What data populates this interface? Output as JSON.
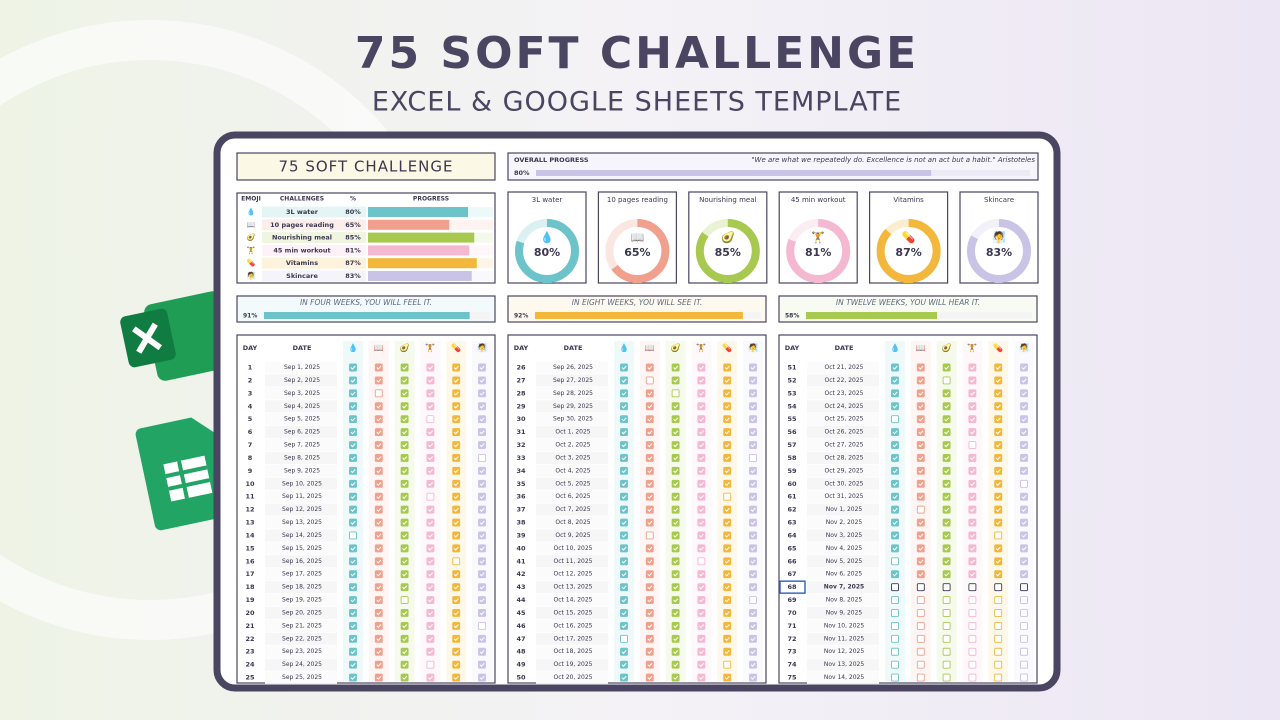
{
  "header": {
    "title": "75 SOFT CHALLENGE",
    "subtitle": "EXCEL & GOOGLE SHEETS TEMPLATE"
  },
  "sheet": {
    "title": "75 SOFT CHALLENGE",
    "overall": {
      "label": "OVERALL PROGRESS",
      "value": 80,
      "value_label": "80%",
      "quote": "\"We are what we repeatedly do. Excellence is not an act but a habit.\" Aristoteles"
    },
    "table_headers": [
      "EMOJI",
      "CHALLENGES",
      "%",
      "PROGRESS"
    ],
    "challenges": [
      {
        "emoji": "💧",
        "name": "3L water",
        "value": 80,
        "value_label": "80%",
        "color": "#6cc3c9"
      },
      {
        "emoji": "📖",
        "name": "10 pages reading",
        "value": 65,
        "value_label": "65%",
        "color": "#f0a08c"
      },
      {
        "emoji": "🥑",
        "name": "Nourishing meal",
        "value": 85,
        "value_label": "85%",
        "color": "#a8c94f"
      },
      {
        "emoji": "🏋",
        "name": "45 min workout",
        "value": 81,
        "value_label": "81%",
        "color": "#f4b8d0"
      },
      {
        "emoji": "💊",
        "name": "Vitamins",
        "value": 87,
        "value_label": "87%",
        "color": "#f2b73b"
      },
      {
        "emoji": "🧖",
        "name": "Skincare",
        "value": 83,
        "value_label": "83%",
        "color": "#c9c3e6"
      }
    ],
    "weeks": [
      {
        "text": "IN FOUR WEEKS, YOU WILL FEEL IT.",
        "value": 91,
        "value_label": "91%",
        "color": "#6cc3c9"
      },
      {
        "text": "IN EIGHT WEEKS, YOU WILL SEE IT.",
        "value": 92,
        "value_label": "92%",
        "color": "#f2b73b"
      },
      {
        "text": "IN TWELVE WEEKS, YOU WILL HEAR IT.",
        "value": 58,
        "value_label": "58%",
        "color": "#a8c94f"
      }
    ],
    "log": {
      "columns": [
        "DAY",
        "DATE"
      ],
      "days": [
        [
          1,
          "Sep 1, 2025",
          [
            1,
            1,
            1,
            1,
            1,
            1
          ]
        ],
        [
          2,
          "Sep 2, 2025",
          [
            1,
            1,
            1,
            1,
            1,
            1
          ]
        ],
        [
          3,
          "Sep 3, 2025",
          [
            1,
            0,
            1,
            1,
            1,
            1
          ]
        ],
        [
          4,
          "Sep 4, 2025",
          [
            1,
            1,
            1,
            1,
            1,
            1
          ]
        ],
        [
          5,
          "Sep 5, 2025",
          [
            1,
            1,
            1,
            0,
            1,
            1
          ]
        ],
        [
          6,
          "Sep 6, 2025",
          [
            1,
            1,
            1,
            1,
            1,
            1
          ]
        ],
        [
          7,
          "Sep 7, 2025",
          [
            1,
            1,
            1,
            1,
            1,
            1
          ]
        ],
        [
          8,
          "Sep 8, 2025",
          [
            1,
            1,
            1,
            1,
            1,
            0
          ]
        ],
        [
          9,
          "Sep 9, 2025",
          [
            1,
            1,
            1,
            1,
            1,
            1
          ]
        ],
        [
          10,
          "Sep 10, 2025",
          [
            1,
            1,
            1,
            1,
            1,
            1
          ]
        ],
        [
          11,
          "Sep 11, 2025",
          [
            1,
            1,
            1,
            0,
            1,
            1
          ]
        ],
        [
          12,
          "Sep 12, 2025",
          [
            1,
            1,
            1,
            1,
            1,
            1
          ]
        ],
        [
          13,
          "Sep 13, 2025",
          [
            1,
            1,
            1,
            1,
            1,
            1
          ]
        ],
        [
          14,
          "Sep 14, 2025",
          [
            0,
            1,
            1,
            1,
            1,
            1
          ]
        ],
        [
          15,
          "Sep 15, 2025",
          [
            1,
            1,
            1,
            1,
            1,
            1
          ]
        ],
        [
          16,
          "Sep 16, 2025",
          [
            1,
            1,
            1,
            1,
            0,
            1
          ]
        ],
        [
          17,
          "Sep 17, 2025",
          [
            1,
            1,
            1,
            1,
            1,
            1
          ]
        ],
        [
          18,
          "Sep 18, 2025",
          [
            1,
            1,
            1,
            1,
            1,
            1
          ]
        ],
        [
          19,
          "Sep 19, 2025",
          [
            1,
            1,
            0,
            1,
            1,
            1
          ]
        ],
        [
          20,
          "Sep 20, 2025",
          [
            1,
            1,
            1,
            1,
            1,
            1
          ]
        ],
        [
          21,
          "Sep 21, 2025",
          [
            1,
            1,
            1,
            1,
            1,
            0
          ]
        ],
        [
          22,
          "Sep 22, 2025",
          [
            1,
            1,
            1,
            1,
            1,
            1
          ]
        ],
        [
          23,
          "Sep 23, 2025",
          [
            1,
            1,
            1,
            1,
            1,
            1
          ]
        ],
        [
          24,
          "Sep 24, 2025",
          [
            1,
            1,
            1,
            0,
            1,
            1
          ]
        ],
        [
          25,
          "Sep 25, 2025",
          [
            1,
            1,
            1,
            1,
            1,
            1
          ]
        ],
        [
          26,
          "Sep 26, 2025",
          [
            1,
            1,
            1,
            1,
            1,
            1
          ]
        ],
        [
          27,
          "Sep 27, 2025",
          [
            1,
            0,
            1,
            1,
            1,
            1
          ]
        ],
        [
          28,
          "Sep 28, 2025",
          [
            1,
            1,
            0,
            1,
            1,
            1
          ]
        ],
        [
          29,
          "Sep 29, 2025",
          [
            1,
            1,
            1,
            1,
            1,
            1
          ]
        ],
        [
          30,
          "Sep 30, 2025",
          [
            1,
            1,
            1,
            1,
            1,
            1
          ]
        ],
        [
          31,
          "Oct 1, 2025",
          [
            1,
            1,
            1,
            1,
            1,
            1
          ]
        ],
        [
          32,
          "Oct 2, 2025",
          [
            1,
            1,
            1,
            1,
            1,
            1
          ]
        ],
        [
          33,
          "Oct 3, 2025",
          [
            1,
            1,
            1,
            1,
            1,
            0
          ]
        ],
        [
          34,
          "Oct 4, 2025",
          [
            1,
            1,
            1,
            1,
            1,
            1
          ]
        ],
        [
          35,
          "Oct 5, 2025",
          [
            1,
            1,
            1,
            1,
            1,
            1
          ]
        ],
        [
          36,
          "Oct 6, 2025",
          [
            1,
            1,
            1,
            1,
            0,
            1
          ]
        ],
        [
          37,
          "Oct 7, 2025",
          [
            1,
            1,
            1,
            1,
            1,
            1
          ]
        ],
        [
          38,
          "Oct 8, 2025",
          [
            1,
            1,
            1,
            1,
            1,
            1
          ]
        ],
        [
          39,
          "Oct 9, 2025",
          [
            1,
            0,
            1,
            1,
            1,
            1
          ]
        ],
        [
          40,
          "Oct 10, 2025",
          [
            1,
            1,
            1,
            1,
            1,
            1
          ]
        ],
        [
          41,
          "Oct 11, 2025",
          [
            1,
            1,
            1,
            0,
            1,
            1
          ]
        ],
        [
          42,
          "Oct 12, 2025",
          [
            1,
            1,
            1,
            1,
            1,
            1
          ]
        ],
        [
          43,
          "Oct 13, 2025",
          [
            1,
            1,
            1,
            1,
            1,
            1
          ]
        ],
        [
          44,
          "Oct 14, 2025",
          [
            1,
            1,
            1,
            1,
            1,
            0
          ]
        ],
        [
          45,
          "Oct 15, 2025",
          [
            1,
            1,
            1,
            1,
            1,
            1
          ]
        ],
        [
          46,
          "Oct 16, 2025",
          [
            1,
            1,
            1,
            1,
            1,
            1
          ]
        ],
        [
          47,
          "Oct 17, 2025",
          [
            0,
            1,
            1,
            1,
            1,
            1
          ]
        ],
        [
          48,
          "Oct 18, 2025",
          [
            1,
            1,
            1,
            1,
            1,
            1
          ]
        ],
        [
          49,
          "Oct 19, 2025",
          [
            1,
            1,
            1,
            1,
            0,
            1
          ]
        ],
        [
          50,
          "Oct 20, 2025",
          [
            1,
            1,
            1,
            1,
            1,
            1
          ]
        ],
        [
          51,
          "Oct 21, 2025",
          [
            1,
            1,
            1,
            1,
            1,
            1
          ]
        ],
        [
          52,
          "Oct 22, 2025",
          [
            1,
            1,
            0,
            1,
            1,
            1
          ]
        ],
        [
          53,
          "Oct 23, 2025",
          [
            1,
            1,
            1,
            1,
            1,
            1
          ]
        ],
        [
          54,
          "Oct 24, 2025",
          [
            1,
            1,
            1,
            1,
            1,
            1
          ]
        ],
        [
          55,
          "Oct 25, 2025",
          [
            0,
            1,
            1,
            1,
            1,
            1
          ]
        ],
        [
          56,
          "Oct 26, 2025",
          [
            1,
            1,
            1,
            1,
            1,
            1
          ]
        ],
        [
          57,
          "Oct 27, 2025",
          [
            1,
            1,
            1,
            0,
            1,
            1
          ]
        ],
        [
          58,
          "Oct 28, 2025",
          [
            1,
            1,
            1,
            1,
            1,
            1
          ]
        ],
        [
          59,
          "Oct 29, 2025",
          [
            1,
            1,
            1,
            1,
            1,
            1
          ]
        ],
        [
          60,
          "Oct 30, 2025",
          [
            1,
            1,
            1,
            1,
            1,
            0
          ]
        ],
        [
          61,
          "Oct 31, 2025",
          [
            1,
            1,
            1,
            1,
            1,
            1
          ]
        ],
        [
          62,
          "Nov 1, 2025",
          [
            1,
            0,
            1,
            1,
            1,
            1
          ]
        ],
        [
          63,
          "Nov 2, 2025",
          [
            1,
            1,
            1,
            1,
            1,
            1
          ]
        ],
        [
          64,
          "Nov 3, 2025",
          [
            1,
            1,
            1,
            1,
            0,
            1
          ]
        ],
        [
          65,
          "Nov 4, 2025",
          [
            1,
            1,
            1,
            1,
            1,
            1
          ]
        ],
        [
          66,
          "Nov 5, 2025",
          [
            0,
            1,
            1,
            1,
            1,
            1
          ]
        ],
        [
          67,
          "Nov 6, 2025",
          [
            1,
            1,
            1,
            1,
            1,
            1
          ]
        ],
        [
          68,
          "Nov 7, 2025",
          [
            0,
            0,
            0,
            0,
            0,
            0
          ]
        ],
        [
          69,
          "Nov 8, 2025",
          [
            0,
            0,
            0,
            0,
            0,
            0
          ]
        ],
        [
          70,
          "Nov 9, 2025",
          [
            0,
            0,
            0,
            0,
            0,
            0
          ]
        ],
        [
          71,
          "Nov 10, 2025",
          [
            0,
            0,
            0,
            0,
            0,
            0
          ]
        ],
        [
          72,
          "Nov 11, 2025",
          [
            0,
            0,
            0,
            0,
            0,
            0
          ]
        ],
        [
          73,
          "Nov 12, 2025",
          [
            0,
            0,
            0,
            0,
            0,
            0
          ]
        ],
        [
          74,
          "Nov 13, 2025",
          [
            0,
            0,
            0,
            0,
            0,
            0
          ]
        ],
        [
          75,
          "Nov 14, 2025",
          [
            0,
            0,
            0,
            0,
            0,
            0
          ]
        ]
      ]
    }
  }
}
